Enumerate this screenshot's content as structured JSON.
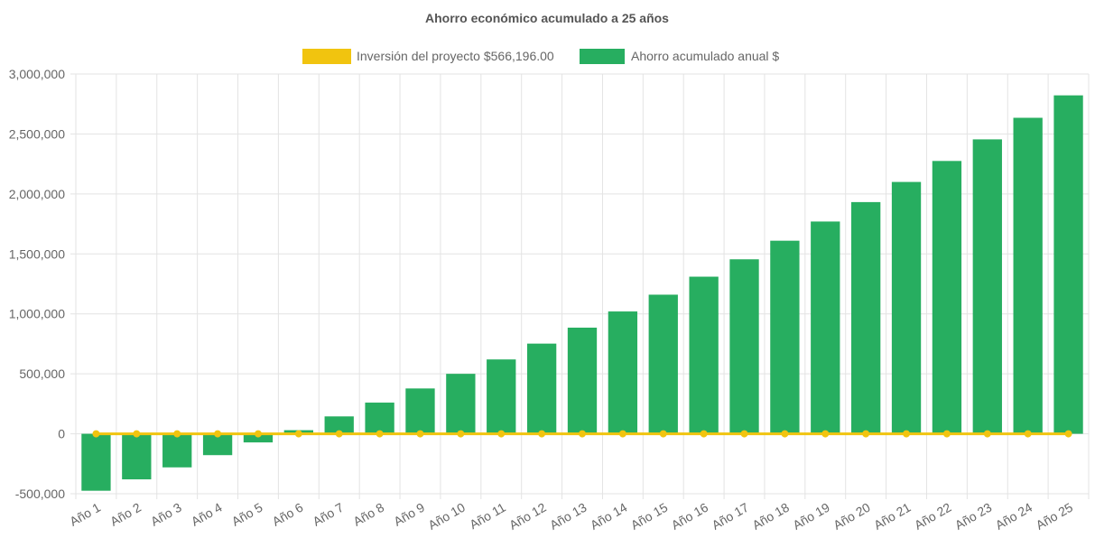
{
  "chart_data": {
    "type": "bar",
    "title": "Ahorro económico acumulado a 25 años",
    "legend_position": "top",
    "grid": true,
    "ylim": [
      -500000,
      3000000
    ],
    "yticks": [
      "3,000,000",
      "2,500,000",
      "2,000,000",
      "1,500,000",
      "1,000,000",
      "500,000",
      "0",
      "-500,000"
    ],
    "ytick_values": [
      3000000,
      2500000,
      2000000,
      1500000,
      1000000,
      500000,
      0,
      -500000
    ],
    "categories": [
      "Año 1",
      "Año 2",
      "Año 3",
      "Año 4",
      "Año 5",
      "Año 6",
      "Año 7",
      "Año 8",
      "Año 9",
      "Año 10",
      "Año 11",
      "Año 12",
      "Año 13",
      "Año 14",
      "Año 15",
      "Año 16",
      "Año 17",
      "Año 18",
      "Año 19",
      "Año 20",
      "Año 21",
      "Año 22",
      "Año 23",
      "Año 24",
      "Año 25"
    ],
    "series": [
      {
        "name": "Inversión del proyecto $566,196.00",
        "type": "line",
        "color": "#f1c40f",
        "values": [
          0,
          0,
          0,
          0,
          0,
          0,
          0,
          0,
          0,
          0,
          0,
          0,
          0,
          0,
          0,
          0,
          0,
          0,
          0,
          0,
          0,
          0,
          0,
          0,
          0
        ]
      },
      {
        "name": "Ahorro acumulado anual $",
        "type": "bar",
        "color": "#27ae60",
        "values": [
          -475000,
          -380000,
          -280000,
          -178000,
          -72000,
          30000,
          145000,
          260000,
          378000,
          500000,
          620000,
          752000,
          885000,
          1020000,
          1160000,
          1310000,
          1455000,
          1610000,
          1770000,
          1932000,
          2100000,
          2275000,
          2455000,
          2635000,
          2822000
        ]
      }
    ]
  }
}
